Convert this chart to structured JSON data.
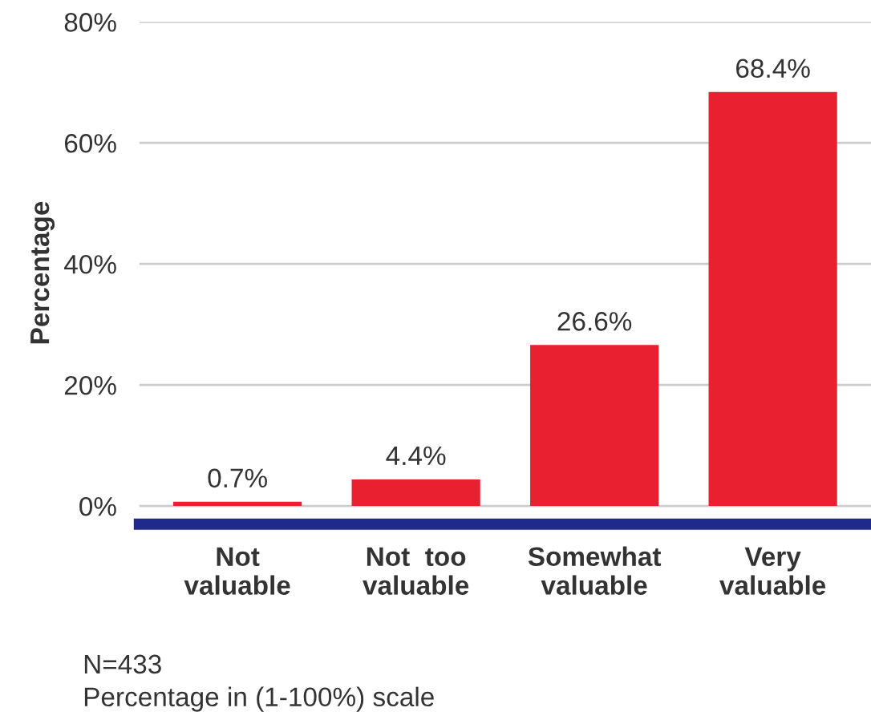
{
  "chart_data": {
    "type": "bar",
    "ylabel": "Percentage",
    "categories": [
      "Not\nvaluable",
      "Not  too\nvaluable",
      "Somewhat\nvaluable",
      "Very\nvaluable"
    ],
    "values": [
      0.7,
      4.4,
      26.6,
      68.4
    ],
    "value_labels": [
      "0.7%",
      "4.4%",
      "26.6%",
      "68.4%"
    ],
    "color": "#e8202f",
    "ylim": [
      -3,
      80
    ],
    "yticks": [
      {
        "value": 0,
        "label": "0%"
      },
      {
        "value": 20,
        "label": "20%"
      },
      {
        "value": 40,
        "label": "40%"
      },
      {
        "value": 60,
        "label": "60%"
      },
      {
        "value": 80,
        "label": "80%"
      }
    ],
    "grid": "y",
    "legend": false,
    "annotations": [
      "N=433",
      "Percentage in (1-100%) scale"
    ]
  }
}
